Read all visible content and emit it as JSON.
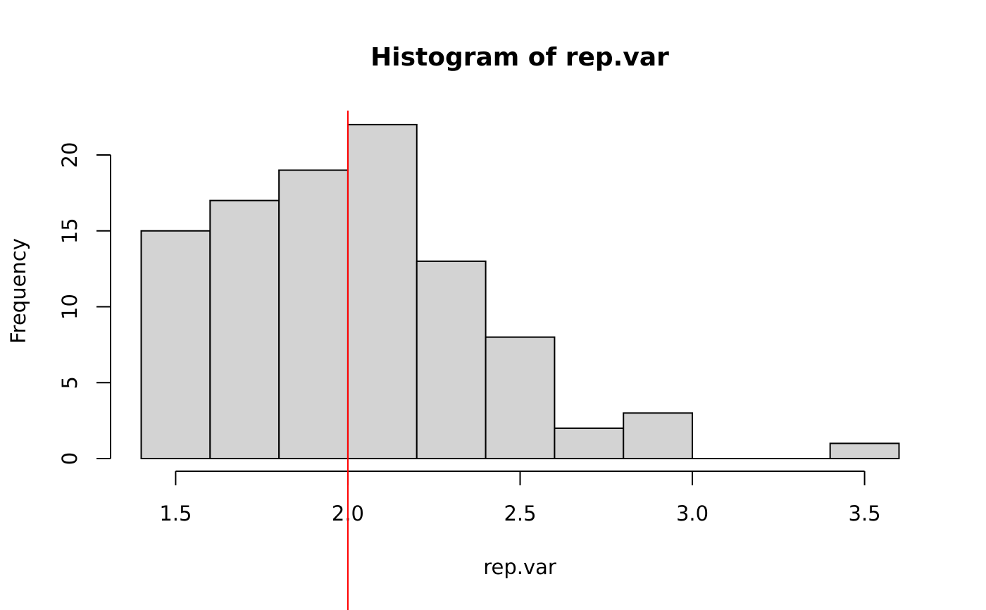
{
  "chart_data": {
    "type": "bar",
    "subtype": "histogram",
    "title": "Histogram of rep.var",
    "xlabel": "rep.var",
    "ylabel": "Frequency",
    "bins": [
      {
        "from": 1.4,
        "to": 1.6,
        "count": 15
      },
      {
        "from": 1.6,
        "to": 1.8,
        "count": 17
      },
      {
        "from": 1.8,
        "to": 2.0,
        "count": 19
      },
      {
        "from": 2.0,
        "to": 2.2,
        "count": 22
      },
      {
        "from": 2.2,
        "to": 2.4,
        "count": 13
      },
      {
        "from": 2.4,
        "to": 2.6,
        "count": 8
      },
      {
        "from": 2.6,
        "to": 2.8,
        "count": 2
      },
      {
        "from": 2.8,
        "to": 3.0,
        "count": 3
      },
      {
        "from": 3.0,
        "to": 3.2,
        "count": 0
      },
      {
        "from": 3.2,
        "to": 3.4,
        "count": 0
      },
      {
        "from": 3.4,
        "to": 3.6,
        "count": 1
      }
    ],
    "x_ticks": [
      1.5,
      2.0,
      2.5,
      3.0,
      3.5
    ],
    "x_tick_labels": [
      "1.5",
      "2.0",
      "2.5",
      "3.0",
      "3.5"
    ],
    "y_ticks": [
      0,
      5,
      10,
      15,
      20
    ],
    "y_tick_labels": [
      "0",
      "5",
      "10",
      "15",
      "20"
    ],
    "xlim": [
      1.4,
      3.6
    ],
    "ylim": [
      0,
      22
    ],
    "grid": false,
    "bar_color": "#d3d3d3",
    "reference_line": {
      "x": 2.0,
      "color": "#ff0000"
    }
  }
}
